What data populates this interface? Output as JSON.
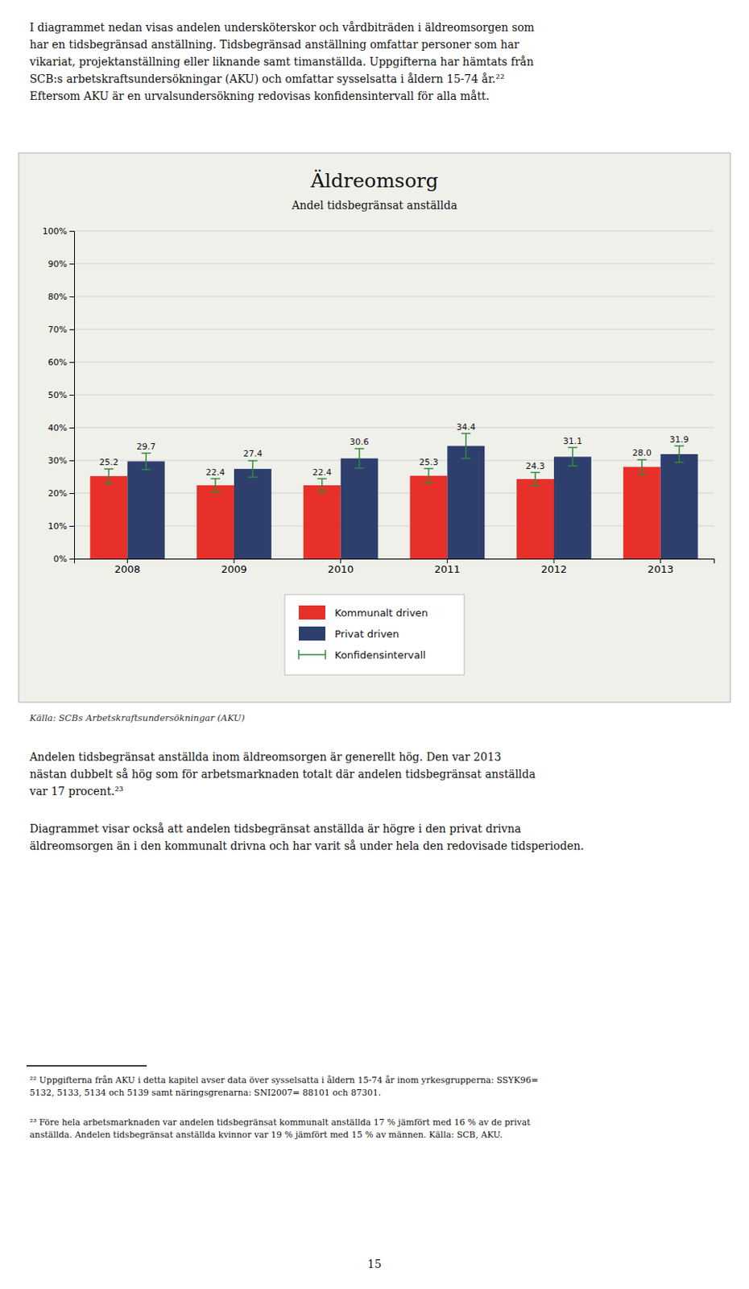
{
  "intro": [
    "I diagrammet nedan visas andelen undersköterskor och vårdbiträden i äldreomsorgen som",
    "har en tidsbegränsad anställning. Tidsbegränsad anställning omfattar personer som har",
    "vikariat, projektanställning eller liknande samt timanställda. Uppgifterna har hämtats från",
    "SCB:s arbetskraftsundersökningar (AKU) och omfattar sysselsatta i åldern 15-74 år.²²",
    "Eftersom AKU är en urvalsundersökning redovisas konfidensintervall för alla mått."
  ],
  "chart_data": {
    "type": "bar",
    "title": "Äldreomsorg",
    "subtitle": "Andel tidsbegränsat anställda",
    "categories": [
      "2008",
      "2009",
      "2010",
      "2011",
      "2012",
      "2013"
    ],
    "series": [
      {
        "name": "Kommunalt driven",
        "color": "#e8302a",
        "values": [
          25.2,
          22.4,
          22.4,
          25.3,
          24.3,
          28.0
        ],
        "value_labels": [
          "25.2",
          "22.4",
          "22.4",
          "25.3",
          "24.3",
          "28.0"
        ],
        "error_low": [
          2.2,
          2.0,
          2.0,
          2.2,
          2.0,
          2.2
        ],
        "error_high": [
          2.2,
          2.0,
          2.0,
          2.2,
          2.0,
          2.2
        ]
      },
      {
        "name": "Privat driven",
        "color": "#2e3f6e",
        "values": [
          29.7,
          27.4,
          30.6,
          34.4,
          31.1,
          31.9
        ],
        "error_low": [
          2.5,
          2.5,
          3.0,
          3.8,
          2.8,
          2.5
        ],
        "error_high": [
          2.5,
          2.5,
          3.0,
          3.8,
          2.8,
          2.5
        ]
      }
    ],
    "error_legend": "Konfidensintervall",
    "error_color": "#2e8b3a",
    "ylim": [
      0,
      100
    ],
    "yticks": [
      {
        "value": 0,
        "label": "0%"
      },
      {
        "value": 10,
        "label": "10%"
      },
      {
        "value": 20,
        "label": "20%"
      },
      {
        "value": 30,
        "label": "30%"
      },
      {
        "value": 40,
        "label": "40%"
      },
      {
        "value": 50,
        "label": "50%"
      },
      {
        "value": 60,
        "label": "60%"
      },
      {
        "value": 70,
        "label": "70%"
      },
      {
        "value": 80,
        "label": "80%"
      },
      {
        "value": 90,
        "label": "90%"
      },
      {
        "value": 100,
        "label": "100%"
      }
    ],
    "grid": true,
    "legend": "bottom",
    "data_labels": true,
    "source": "Källa: SCBs Arbetskraftsundersökningar (AKU)"
  },
  "paragraphs": [
    [
      "Andelen tidsbegränsat anställda inom äldreomsorgen är generellt hög. Den var 2013",
      "nästan dubbelt så hög som för arbetsmarknaden totalt där andelen tidsbegränsat anställda",
      "var 17 procent.²³"
    ],
    [
      "Diagrammet visar också att andelen tidsbegränsat anställda är högre i den privat drivna",
      "äldreomsorgen än i den kommunalt drivna och har varit så under hela den redovisade tidsperioden."
    ]
  ],
  "footnotes": [
    [
      "²² Uppgifterna från AKU i detta kapitel avser data över sysselsatta i åldern 15-74 år inom yrkesgrupperna: SSYK96=",
      "5132, 5133, 5134 och 5139 samt näringsgrenarna: SNI2007= 88101 och 87301."
    ],
    [
      "²³ Före hela arbetsmarknaden var andelen tidsbegränsat kommunalt anställda 17 % jämfört med 16 % av de privat",
      "anställda. Andelen tidsbegränsat anställda kvinnor var 19 % jämfört med 15 % av männen. Källa: SCB, AKU."
    ]
  ],
  "page_number": "15"
}
